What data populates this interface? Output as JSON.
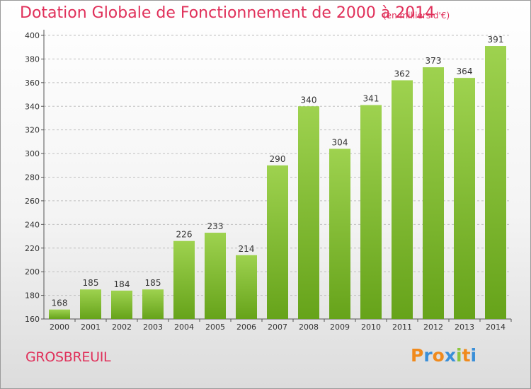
{
  "title": "Dotation Globale de Fonctionnement de 2000 à 2014",
  "subtitle": "(en milliers d'€)",
  "town": "GROSBREUIL",
  "logo": {
    "letters": [
      "P",
      "r",
      "o",
      "x",
      "i",
      "t",
      "i"
    ],
    "colors": [
      "#f08a1c",
      "#3a8fd8",
      "#f08a1c",
      "#3a8fd8",
      "#8cc63f",
      "#f08a1c",
      "#3a8fd8"
    ]
  },
  "colors": {
    "title": "#e0305a",
    "bar_light": "#9ed24f",
    "bar_dark": "#66a31a",
    "grid": "#bfbfbf"
  },
  "chart_data": {
    "type": "bar",
    "categories": [
      "2000",
      "2001",
      "2002",
      "2003",
      "2004",
      "2005",
      "2006",
      "2007",
      "2008",
      "2009",
      "2010",
      "2011",
      "2012",
      "2013",
      "2014"
    ],
    "values": [
      168,
      185,
      184,
      185,
      226,
      233,
      214,
      290,
      340,
      304,
      341,
      362,
      373,
      364,
      391
    ],
    "title": "Dotation Globale de Fonctionnement de 2000 à 2014",
    "subtitle": "(en milliers d'€)",
    "xlabel": "",
    "ylabel": "",
    "ylim": [
      160,
      400
    ],
    "yticks": [
      160,
      180,
      200,
      220,
      240,
      260,
      280,
      300,
      320,
      340,
      360,
      380,
      400
    ],
    "grid": true,
    "data_labels": true
  }
}
